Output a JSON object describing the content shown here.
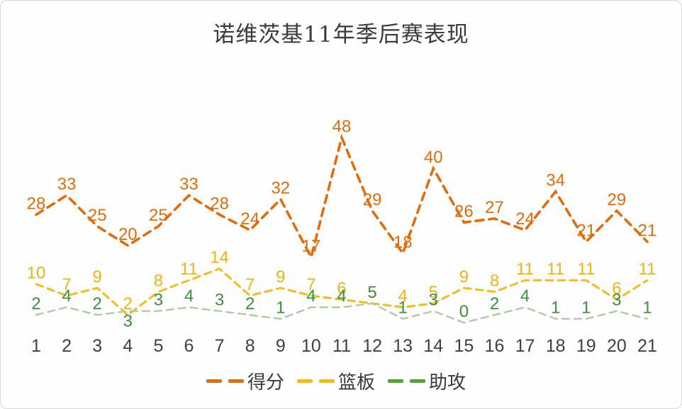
{
  "title": "诺维茨基11年季后赛表现",
  "legend": [
    {
      "label": "得分",
      "color": "#e36c0a"
    },
    {
      "label": "篮板",
      "color": "#f5b90f"
    },
    {
      "label": "助攻",
      "color": "#4ea72e"
    }
  ],
  "chart_data": {
    "type": "line",
    "title": "诺维茨基11年季后赛表现",
    "xlabel": "",
    "ylabel": "",
    "categories": [
      1,
      2,
      3,
      4,
      5,
      6,
      7,
      8,
      9,
      10,
      11,
      12,
      13,
      14,
      15,
      16,
      17,
      18,
      19,
      20,
      21
    ],
    "ylim": [
      0,
      48
    ],
    "grid": false,
    "legend_position": "bottom",
    "line_style": "dashed",
    "data_labels": true,
    "axis_text_color": "#404040",
    "series": [
      {
        "name": "得分",
        "key": "points",
        "label_color": "#e36c0a",
        "line_color": "#e36c0a",
        "values": [
          28,
          33,
          25,
          20,
          25,
          33,
          28,
          24,
          32,
          17,
          48,
          29,
          18,
          40,
          26,
          27,
          24,
          34,
          21,
          29,
          21
        ]
      },
      {
        "name": "篮板",
        "key": "rebounds",
        "label_color": "#eeb313",
        "line_color": "#f2bc1b",
        "values": [
          10,
          7,
          9,
          2,
          8,
          11,
          14,
          7,
          9,
          7,
          6,
          5,
          4,
          5,
          9,
          8,
          11,
          11,
          11,
          6,
          11
        ]
      },
      {
        "name": "助攻",
        "key": "assists",
        "label_color": "#3c9140",
        "line_color": "#b4c8a2",
        "values": [
          2,
          4,
          2,
          3,
          3,
          4,
          3,
          2,
          1,
          4,
          4,
          5,
          1,
          3,
          0,
          2,
          4,
          1,
          1,
          3,
          1
        ]
      }
    ]
  }
}
